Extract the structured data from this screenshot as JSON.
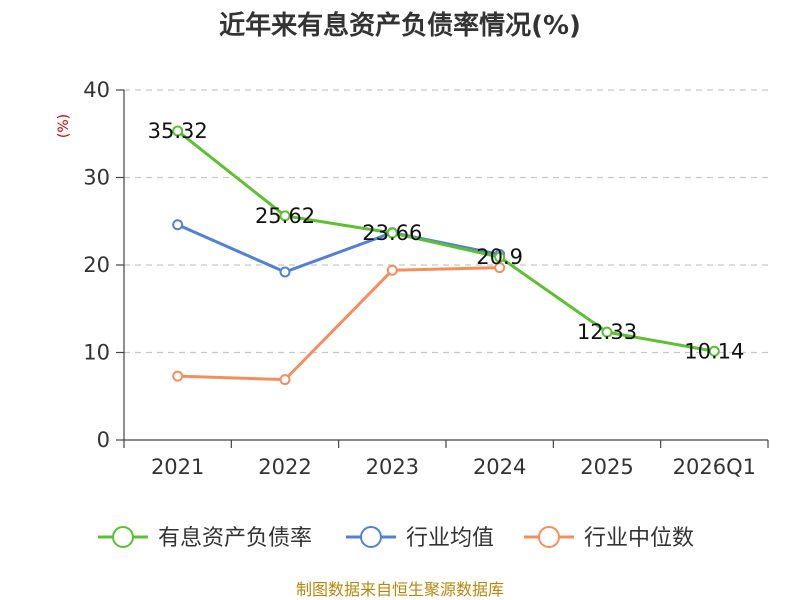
{
  "chart_data": {
    "type": "line",
    "title": "近年来有息资产负债率情况(%)",
    "ylabel": "(%)",
    "xlabel": "",
    "ylim": [
      0,
      40
    ],
    "yticks": [
      0,
      10,
      20,
      30,
      40
    ],
    "grid": true,
    "legend_position": "bottom",
    "categories": [
      "2021",
      "2022",
      "2023",
      "2024",
      "2025",
      "2026Q1"
    ],
    "series": [
      {
        "name": "有息资产负债率",
        "color": "#5cc130",
        "values": [
          35.32,
          25.62,
          23.66,
          20.9,
          12.33,
          10.14
        ],
        "labels": [
          "35.32",
          "25.62",
          "23.66",
          "20.9",
          "12.33",
          "10.14"
        ]
      },
      {
        "name": "行业均值",
        "color": "#4f81d9",
        "values": [
          24.6,
          19.2,
          23.7,
          21.2,
          null,
          null
        ]
      },
      {
        "name": "行业中位数",
        "color": "#f68d5c",
        "values": [
          7.3,
          6.9,
          19.4,
          19.7,
          null,
          null
        ]
      }
    ]
  },
  "source": "制图数据来自恒生聚源数据库"
}
